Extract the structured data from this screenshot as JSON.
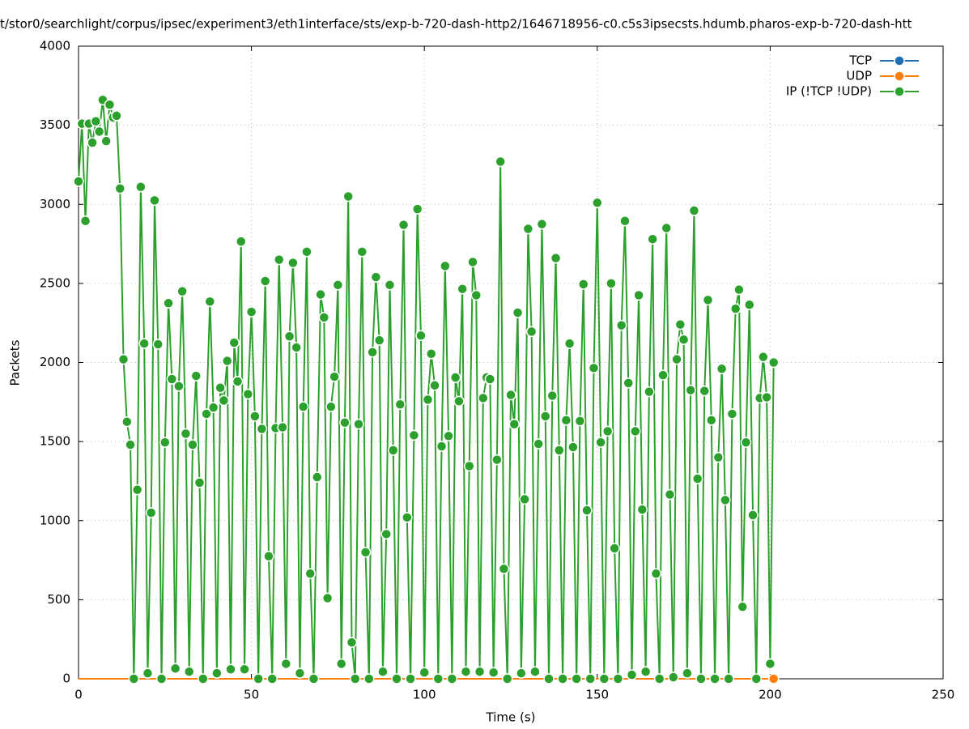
{
  "chart_data": {
    "type": "line",
    "title": "t/stor0/searchlight/corpus/ipsec/experiment3/eth1interface/sts/exp-b-720-dash-http2/1646718956-c0.c5s3ipsecsts.hdumb.pharos-exp-b-720-dash-htt",
    "xlabel": "Time (s)",
    "ylabel": "Packets",
    "xlim": [
      0,
      250
    ],
    "xticks": [
      0,
      50,
      100,
      150,
      200,
      250
    ],
    "ylim": [
      0,
      4000
    ],
    "yticks": [
      0,
      500,
      1000,
      1500,
      2000,
      2500,
      3000,
      3500,
      4000
    ],
    "grid": true,
    "legend": "top-right",
    "x": [
      0,
      1,
      2,
      3,
      4,
      5,
      6,
      7,
      8,
      9,
      10,
      11,
      12,
      13,
      14,
      15,
      16,
      17,
      18,
      19,
      20,
      21,
      22,
      23,
      24,
      25,
      26,
      27,
      28,
      29,
      30,
      31,
      32,
      33,
      34,
      35,
      36,
      37,
      38,
      39,
      40,
      41,
      42,
      43,
      44,
      45,
      46,
      47,
      48,
      49,
      50,
      51,
      52,
      53,
      54,
      55,
      56,
      57,
      58,
      59,
      60,
      61,
      62,
      63,
      64,
      65,
      66,
      67,
      68,
      69,
      70,
      71,
      72,
      73,
      74,
      75,
      76,
      77,
      78,
      79,
      80,
      81,
      82,
      83,
      84,
      85,
      86,
      87,
      88,
      89,
      90,
      91,
      92,
      93,
      94,
      95,
      96,
      97,
      98,
      99,
      100,
      101,
      102,
      103,
      104,
      105,
      106,
      107,
      108,
      109,
      110,
      111,
      112,
      113,
      114,
      115,
      116,
      117,
      118,
      119,
      120,
      121,
      122,
      123,
      124,
      125,
      126,
      127,
      128,
      129,
      130,
      131,
      132,
      133,
      134,
      135,
      136,
      137,
      138,
      139,
      140,
      141,
      142,
      143,
      144,
      145,
      146,
      147,
      148,
      149,
      150,
      151,
      152,
      153,
      154,
      155,
      156,
      157,
      158,
      159,
      160,
      161,
      162,
      163,
      164,
      165,
      166,
      167,
      168,
      169,
      170,
      171,
      172,
      173,
      174,
      175,
      176,
      177,
      178,
      179,
      180,
      181,
      182,
      183,
      184,
      185,
      186,
      187,
      188,
      189,
      190,
      191,
      192,
      193,
      194,
      195,
      196,
      197,
      198,
      199,
      200,
      201
    ],
    "series": [
      {
        "name": "TCP",
        "color": "#1f6eb4",
        "values": [
          0,
          0,
          0,
          0,
          0,
          0,
          0,
          0,
          0,
          0,
          0,
          0,
          0,
          0,
          0,
          0,
          0,
          0,
          0,
          0,
          0,
          0,
          0,
          0,
          0,
          0,
          0,
          0,
          0,
          0,
          0,
          0,
          0,
          0,
          0,
          0,
          0,
          0,
          0,
          0,
          0,
          0,
          0,
          0,
          0,
          0,
          0,
          0,
          0,
          0,
          0,
          0,
          0,
          0,
          0,
          0,
          0,
          0,
          0,
          0,
          0,
          0,
          0,
          0,
          0,
          0,
          0,
          0,
          0,
          0,
          0,
          0,
          0,
          0,
          0,
          0,
          0,
          0,
          0,
          0,
          0,
          0,
          0,
          0,
          0,
          0,
          0,
          0,
          0,
          0,
          0,
          0,
          0,
          0,
          0,
          0,
          0,
          0,
          0,
          0,
          0,
          0,
          0,
          0,
          0,
          0,
          0,
          0,
          0,
          0,
          0,
          0,
          0,
          0,
          0,
          0,
          0,
          0,
          0,
          0,
          0,
          0,
          0,
          0,
          0,
          0,
          0,
          0,
          0,
          0,
          0,
          0,
          0,
          0,
          0,
          0,
          0,
          0,
          0,
          0,
          0,
          0,
          0,
          0,
          0,
          0,
          0,
          0,
          0,
          0,
          0,
          0,
          0,
          0,
          0,
          0,
          0,
          0,
          0,
          0,
          0,
          0,
          0,
          0,
          0,
          0,
          0,
          0,
          0,
          0,
          0,
          0,
          0,
          0,
          0,
          0,
          0,
          0,
          0,
          0,
          0,
          0,
          0,
          0,
          0,
          0,
          0,
          0,
          0,
          0,
          0,
          0,
          0,
          0,
          0,
          0,
          0,
          0,
          0,
          0,
          0,
          0
        ]
      },
      {
        "name": "UDP",
        "color": "#ff7f0e",
        "values": [
          0,
          0,
          0,
          0,
          0,
          0,
          0,
          0,
          0,
          0,
          0,
          0,
          0,
          0,
          0,
          0,
          0,
          0,
          0,
          0,
          0,
          0,
          0,
          0,
          0,
          0,
          0,
          0,
          0,
          0,
          0,
          0,
          0,
          0,
          0,
          0,
          0,
          0,
          0,
          0,
          0,
          0,
          0,
          0,
          0,
          0,
          0,
          0,
          0,
          0,
          0,
          0,
          0,
          0,
          0,
          0,
          0,
          0,
          0,
          0,
          0,
          0,
          0,
          0,
          0,
          0,
          0,
          0,
          0,
          0,
          0,
          0,
          0,
          0,
          0,
          0,
          0,
          0,
          0,
          0,
          0,
          0,
          0,
          0,
          0,
          0,
          0,
          0,
          0,
          0,
          0,
          0,
          0,
          0,
          0,
          0,
          0,
          0,
          0,
          0,
          0,
          0,
          0,
          0,
          0,
          0,
          0,
          0,
          0,
          0,
          0,
          0,
          0,
          0,
          0,
          0,
          0,
          0,
          0,
          0,
          0,
          0,
          0,
          0,
          0,
          0,
          0,
          0,
          0,
          0,
          0,
          0,
          0,
          0,
          0,
          0,
          0,
          0,
          0,
          0,
          0,
          0,
          0,
          0,
          0,
          0,
          0,
          0,
          0,
          0,
          0,
          0,
          0,
          0,
          0,
          0,
          0,
          0,
          0,
          0,
          0,
          0,
          0,
          0,
          0,
          0,
          0,
          0,
          0,
          0,
          0,
          0,
          0,
          0,
          0,
          0,
          0,
          0,
          0,
          0,
          0,
          0,
          0,
          0,
          0,
          0,
          0,
          0,
          0,
          0,
          0,
          0,
          0,
          0,
          0,
          0,
          0,
          0,
          0,
          0,
          0,
          0
        ]
      },
      {
        "name": "IP (!TCP  !UDP)",
        "color": "#2ca02c",
        "values": [
          3145,
          3510,
          2895,
          3510,
          3390,
          3525,
          3460,
          3660,
          3400,
          3630,
          3550,
          3560,
          3100,
          2020,
          1625,
          1480,
          0,
          1195,
          3110,
          2120,
          35,
          1050,
          3025,
          2115,
          0,
          1495,
          2375,
          1895,
          65,
          1850,
          2450,
          1550,
          45,
          1480,
          1915,
          1240,
          0,
          1675,
          2385,
          1715,
          35,
          1840,
          1760,
          2010,
          60,
          2125,
          1880,
          2765,
          60,
          1800,
          2320,
          1660,
          0,
          1580,
          2515,
          775,
          0,
          1585,
          2650,
          1590,
          95,
          2165,
          2630,
          2095,
          35,
          1720,
          2700,
          665,
          0,
          1275,
          2430,
          2285,
          510,
          1720,
          1910,
          2490,
          95,
          1620,
          3050,
          230,
          0,
          1610,
          2700,
          800,
          0,
          2065,
          2540,
          2140,
          45,
          915,
          2490,
          1445,
          0,
          1735,
          2870,
          1020,
          0,
          1540,
          2970,
          2170,
          40,
          1765,
          2055,
          1855,
          0,
          1470,
          2610,
          1535,
          0,
          1905,
          1755,
          2465,
          45,
          1345,
          2635,
          2425,
          45,
          1775,
          1905,
          1895,
          40,
          1385,
          3270,
          695,
          0,
          1795,
          1610,
          2315,
          35,
          1135,
          2845,
          2195,
          45,
          1485,
          2875,
          1660,
          0,
          1790,
          2660,
          1445,
          0,
          1635,
          2120,
          1465,
          0,
          1630,
          2495,
          1065,
          0,
          1965,
          3010,
          1495,
          0,
          1565,
          2500,
          825,
          0,
          2235,
          2895,
          1870,
          25,
          1565,
          2425,
          1070,
          45,
          1815,
          2780,
          665,
          0,
          1920,
          2850,
          1165,
          10,
          2020,
          2240,
          2145,
          35,
          1825,
          2960,
          1265,
          0,
          1820,
          2395,
          1635,
          0,
          1400,
          1960,
          1130,
          0,
          1675,
          2340,
          2460,
          455,
          1495,
          2365,
          1035,
          0,
          1775,
          2035,
          1780,
          95,
          2000
        ]
      }
    ]
  }
}
